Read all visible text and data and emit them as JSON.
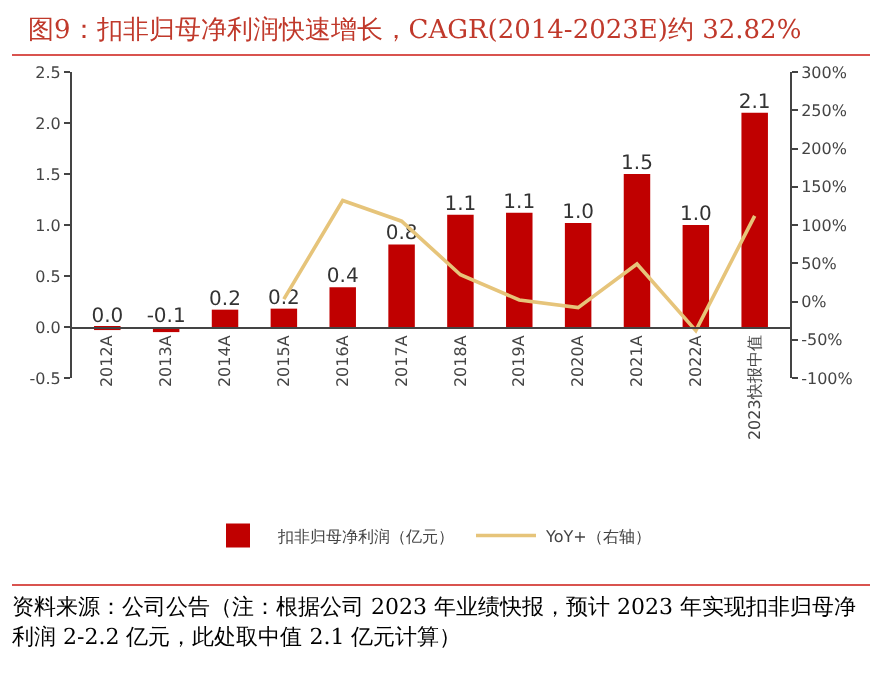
{
  "chart_data": {
    "type": "bar",
    "title": "图9：扣非归母净利润快速增长，CAGR(2014-2023E)约 32.82%",
    "categories": [
      "2012A",
      "2013A",
      "2014A",
      "2015A",
      "2016A",
      "2017A",
      "2018A",
      "2019A",
      "2020A",
      "2021A",
      "2022A",
      "2023快报中值"
    ],
    "series": [
      {
        "name": "扣非归母净利润（亿元）",
        "color": "#c00000",
        "values": [
          -0.03,
          -0.05,
          0.17,
          0.18,
          0.39,
          0.81,
          1.1,
          1.12,
          1.02,
          1.5,
          1.0,
          2.1
        ],
        "value_labels": [
          "0.0",
          "-0.1",
          "0.2",
          "0.2",
          "0.4",
          "0.8",
          "1.1",
          "1.1",
          "1.0",
          "1.5",
          "1.0",
          "2.1"
        ]
      },
      {
        "name": "YoY+（右轴）",
        "type": "line",
        "axis": "y2",
        "color": "#e6c47a",
        "values": [
          null,
          null,
          null,
          3,
          132,
          105,
          35,
          2,
          -8,
          49,
          -38,
          112
        ]
      }
    ],
    "ylim": [
      -0.5,
      2.5
    ],
    "yticks": [
      {
        "value": -0.5,
        "label": "-0.5"
      },
      {
        "value": 0,
        "label": "0.0"
      },
      {
        "value": 0.5,
        "label": "0.5"
      },
      {
        "value": 1,
        "label": "1.0"
      },
      {
        "value": 1.5,
        "label": "1.5"
      },
      {
        "value": 2,
        "label": "2.0"
      },
      {
        "value": 2.5,
        "label": "2.5"
      }
    ],
    "y2lim": [
      -100,
      300
    ],
    "y2ticks": [
      {
        "value": -100,
        "label": "-100%"
      },
      {
        "value": -50,
        "label": "-50%"
      },
      {
        "value": 0,
        "label": "0%"
      },
      {
        "value": 50,
        "label": "50%"
      },
      {
        "value": 100,
        "label": "100%"
      },
      {
        "value": 150,
        "label": "150%"
      },
      {
        "value": 200,
        "label": "200%"
      },
      {
        "value": 250,
        "label": "250%"
      },
      {
        "value": 300,
        "label": "300%"
      }
    ],
    "grid": false,
    "legend": "bottom",
    "marker": "none",
    "line_style": "solid",
    "annotations": [
      "资料来源：公司公告（注：根据公司 2023 年业绩快报，预计 2023 年实现扣非归母净利润 2-2.2 亿元，此处取中值 2.1 亿元计算）"
    ]
  }
}
